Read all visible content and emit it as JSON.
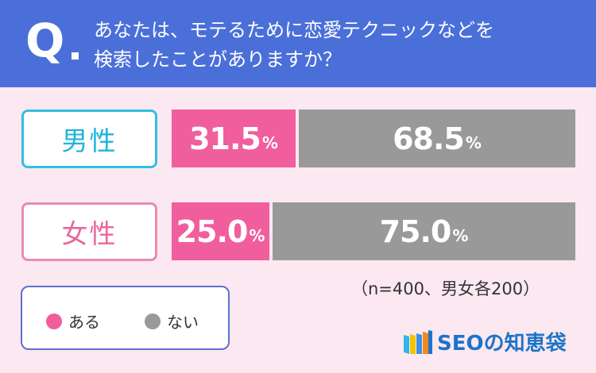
{
  "question": {
    "mark": "Q",
    "line1": "あなたは、モテるために恋愛テクニックなどを",
    "line2": "検索したことがありますか？"
  },
  "colors": {
    "header_bg": "#4a6fd9",
    "background": "#fce8f1",
    "yes": "#f15e9d",
    "no": "#999999",
    "male_accent": "#32bfe0",
    "female_accent": "#e78cb1",
    "brand_blue": "#1d74c8"
  },
  "chart_data": {
    "type": "bar",
    "orientation": "horizontal",
    "stacked": true,
    "categories": [
      "男性",
      "女性"
    ],
    "series": [
      {
        "name": "ある",
        "values": [
          31.5,
          25.0
        ]
      },
      {
        "name": "ない",
        "values": [
          68.5,
          75.0
        ]
      }
    ],
    "display_values": [
      [
        "31.5",
        "68.5"
      ],
      [
        "25.0",
        "75.0"
      ]
    ],
    "unit": "%",
    "xlim": [
      0,
      100
    ],
    "grid": false,
    "legend_position": "bottom-left"
  },
  "note": "（n=400、男女各200）",
  "brand": {
    "name": "SEOの知恵袋",
    "icon": "bookshelf-logo-icon"
  }
}
